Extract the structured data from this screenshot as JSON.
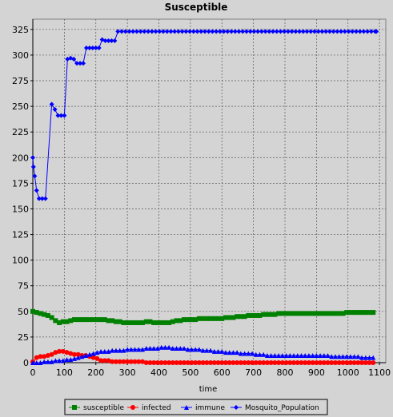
{
  "chart_data": {
    "type": "line",
    "title": "Susceptible",
    "xlabel": "time",
    "ylabel": "",
    "xlim": [
      0,
      1120
    ],
    "ylim": [
      0,
      335
    ],
    "xticks": [
      0,
      100,
      200,
      300,
      400,
      500,
      600,
      700,
      800,
      900,
      1000,
      1100
    ],
    "yticks": [
      0,
      25,
      50,
      75,
      100,
      125,
      150,
      175,
      200,
      225,
      250,
      275,
      300,
      325
    ],
    "grid": true,
    "legend_position": "bottom-center",
    "series": [
      {
        "name": "susceptible",
        "color": "#008000",
        "marker": "square",
        "step": 12,
        "points": [
          [
            0,
            50
          ],
          [
            10,
            49
          ],
          [
            30,
            47
          ],
          [
            50,
            46
          ],
          [
            60,
            44
          ],
          [
            70,
            42
          ],
          [
            80,
            39
          ],
          [
            100,
            40
          ],
          [
            120,
            41
          ],
          [
            140,
            42
          ],
          [
            200,
            42
          ],
          [
            220,
            42
          ],
          [
            250,
            41
          ],
          [
            270,
            40
          ],
          [
            300,
            39
          ],
          [
            340,
            39
          ],
          [
            360,
            40
          ],
          [
            390,
            39
          ],
          [
            430,
            39
          ],
          [
            460,
            41
          ],
          [
            500,
            42
          ],
          [
            540,
            43
          ],
          [
            600,
            43
          ],
          [
            620,
            44
          ],
          [
            660,
            45
          ],
          [
            700,
            46
          ],
          [
            760,
            47
          ],
          [
            800,
            48
          ],
          [
            990,
            48
          ],
          [
            1000,
            49
          ],
          [
            1090,
            49
          ]
        ]
      },
      {
        "name": "infected",
        "color": "#ff0000",
        "marker": "circle",
        "step": 12,
        "points": [
          [
            0,
            1
          ],
          [
            10,
            5
          ],
          [
            20,
            6
          ],
          [
            40,
            6
          ],
          [
            60,
            8
          ],
          [
            80,
            11
          ],
          [
            90,
            12
          ],
          [
            100,
            11
          ],
          [
            110,
            10
          ],
          [
            130,
            8
          ],
          [
            160,
            7
          ],
          [
            180,
            6
          ],
          [
            200,
            4
          ],
          [
            220,
            2
          ],
          [
            260,
            1
          ],
          [
            300,
            1
          ],
          [
            400,
            0
          ],
          [
            1090,
            0
          ]
        ]
      },
      {
        "name": "immune",
        "color": "#0000ff",
        "marker": "triangle",
        "step": 12,
        "points": [
          [
            0,
            0
          ],
          [
            50,
            1
          ],
          [
            80,
            2
          ],
          [
            120,
            3
          ],
          [
            160,
            6
          ],
          [
            190,
            9
          ],
          [
            220,
            11
          ],
          [
            280,
            12
          ],
          [
            320,
            13
          ],
          [
            380,
            14
          ],
          [
            420,
            15
          ],
          [
            460,
            14
          ],
          [
            500,
            13
          ],
          [
            560,
            12
          ],
          [
            620,
            10
          ],
          [
            680,
            9
          ],
          [
            760,
            7
          ],
          [
            900,
            7
          ],
          [
            980,
            6
          ],
          [
            1090,
            5
          ]
        ]
      },
      {
        "name": "Mosquito_Population",
        "color": "#0000ff",
        "marker": "diamond",
        "step": 0,
        "points": [
          [
            0,
            200
          ],
          [
            2,
            191
          ],
          [
            6,
            182
          ],
          [
            12,
            168
          ],
          [
            20,
            160
          ],
          [
            30,
            160
          ],
          [
            40,
            160
          ],
          [
            60,
            252
          ],
          [
            70,
            247
          ],
          [
            80,
            241
          ],
          [
            90,
            241
          ],
          [
            100,
            241
          ],
          [
            110,
            296
          ],
          [
            120,
            297
          ],
          [
            130,
            296
          ],
          [
            140,
            292
          ],
          [
            150,
            292
          ],
          [
            160,
            292
          ],
          [
            170,
            307
          ],
          [
            180,
            307
          ],
          [
            190,
            307
          ],
          [
            200,
            307
          ],
          [
            210,
            307
          ],
          [
            220,
            315
          ],
          [
            230,
            314
          ],
          [
            240,
            314
          ],
          [
            250,
            314
          ],
          [
            260,
            314
          ],
          [
            270,
            323
          ],
          [
            1090,
            323
          ]
        ]
      }
    ]
  }
}
